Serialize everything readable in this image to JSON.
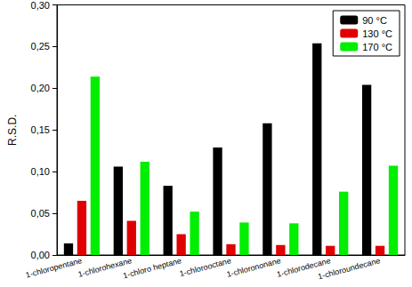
{
  "chart_data": {
    "type": "bar",
    "y_label": "R.S.D.",
    "categories": [
      "1-chloropentane",
      "1-chlorohexane",
      "1-chloro heptane",
      "1-chlorooctane",
      "1-chlorononane",
      "1-chlorodecane",
      "1-chloroundecane"
    ],
    "series": [
      {
        "name": "90 °C",
        "color": "#000000",
        "values": [
          0.014,
          0.106,
          0.083,
          0.129,
          0.158,
          0.254,
          0.204
        ]
      },
      {
        "name": "130 °C",
        "color": "#e00000",
        "values": [
          0.065,
          0.041,
          0.025,
          0.013,
          0.012,
          0.011,
          0.011
        ]
      },
      {
        "name": "170 °C",
        "color": "#00ee00",
        "values": [
          0.214,
          0.112,
          0.052,
          0.039,
          0.038,
          0.076,
          0.107
        ]
      }
    ],
    "ylim": [
      0,
      0.3
    ],
    "yticks": [
      {
        "value": 0,
        "label": "0,00"
      },
      {
        "value": 0.05,
        "label": "0,05"
      },
      {
        "value": 0.1,
        "label": "0,10"
      },
      {
        "value": 0.15,
        "label": "0,15"
      },
      {
        "value": 0.2,
        "label": "0,20"
      },
      {
        "value": 0.25,
        "label": "0,25"
      },
      {
        "value": 0.3,
        "label": "0,30"
      }
    ],
    "grid": false,
    "legend": "upper right"
  }
}
